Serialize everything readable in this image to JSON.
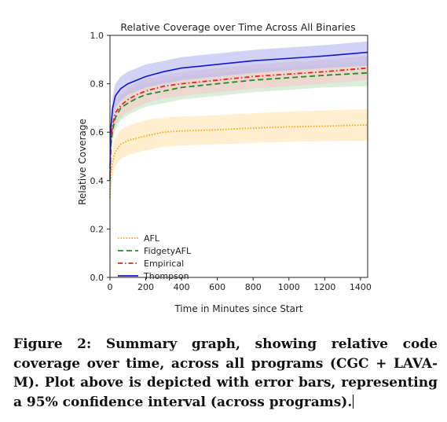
{
  "chart_data": {
    "type": "line",
    "title": "Relative Coverage over Time Across All Binaries",
    "xlabel": "Time in Minutes since Start",
    "ylabel": "Relative Coverage",
    "xlim": [
      0,
      1440
    ],
    "ylim": [
      0,
      1.0
    ],
    "xticks": [
      0,
      200,
      400,
      600,
      800,
      1000,
      1200,
      1400
    ],
    "yticks": [
      0.0,
      0.2,
      0.4,
      0.6,
      0.8,
      1.0
    ],
    "grid": false,
    "legend_position": "lower-left",
    "x": [
      0,
      5,
      15,
      30,
      60,
      100,
      150,
      200,
      300,
      400,
      600,
      800,
      1000,
      1200,
      1440
    ],
    "series": [
      {
        "name": "AFL",
        "color": "#FFA500",
        "style": "dotted",
        "band_color": "#FFE4B0",
        "values": [
          0.33,
          0.43,
          0.48,
          0.52,
          0.55,
          0.565,
          0.575,
          0.585,
          0.6,
          0.605,
          0.61,
          0.617,
          0.622,
          0.625,
          0.63
        ],
        "lower": [
          0.28,
          0.37,
          0.42,
          0.46,
          0.49,
          0.505,
          0.515,
          0.525,
          0.54,
          0.545,
          0.55,
          0.555,
          0.56,
          0.563,
          0.565
        ],
        "upper": [
          0.38,
          0.49,
          0.55,
          0.58,
          0.61,
          0.625,
          0.64,
          0.65,
          0.66,
          0.665,
          0.67,
          0.678,
          0.685,
          0.69,
          0.695
        ]
      },
      {
        "name": "FidgetyAFL",
        "color": "#228B22",
        "style": "dashed",
        "band_color": "#BFE5BF",
        "values": [
          0.4,
          0.55,
          0.61,
          0.66,
          0.7,
          0.72,
          0.74,
          0.755,
          0.77,
          0.785,
          0.8,
          0.815,
          0.825,
          0.835,
          0.845
        ],
        "lower": [
          0.36,
          0.5,
          0.56,
          0.61,
          0.65,
          0.67,
          0.69,
          0.705,
          0.72,
          0.735,
          0.75,
          0.765,
          0.775,
          0.785,
          0.79
        ],
        "upper": [
          0.44,
          0.6,
          0.66,
          0.71,
          0.75,
          0.77,
          0.79,
          0.8,
          0.815,
          0.83,
          0.845,
          0.86,
          0.87,
          0.88,
          0.89
        ]
      },
      {
        "name": "Empirical",
        "color": "#E8231E",
        "style": "dashdot",
        "band_color": "#F6C6C4",
        "values": [
          0.42,
          0.57,
          0.63,
          0.68,
          0.71,
          0.735,
          0.755,
          0.77,
          0.79,
          0.8,
          0.815,
          0.83,
          0.84,
          0.85,
          0.865
        ],
        "lower": [
          0.38,
          0.52,
          0.58,
          0.63,
          0.66,
          0.685,
          0.705,
          0.72,
          0.74,
          0.75,
          0.765,
          0.78,
          0.79,
          0.8,
          0.815
        ],
        "upper": [
          0.46,
          0.62,
          0.68,
          0.73,
          0.76,
          0.785,
          0.805,
          0.82,
          0.835,
          0.85,
          0.865,
          0.88,
          0.89,
          0.9,
          0.915
        ]
      },
      {
        "name": "Thompson",
        "color": "#1515D0",
        "style": "solid",
        "band_color": "#B4B4F2",
        "values": [
          0.45,
          0.62,
          0.7,
          0.75,
          0.78,
          0.8,
          0.815,
          0.83,
          0.85,
          0.865,
          0.88,
          0.895,
          0.905,
          0.915,
          0.93
        ],
        "lower": [
          0.4,
          0.57,
          0.65,
          0.7,
          0.73,
          0.755,
          0.77,
          0.785,
          0.8,
          0.815,
          0.83,
          0.845,
          0.855,
          0.865,
          0.875
        ],
        "upper": [
          0.5,
          0.67,
          0.75,
          0.8,
          0.83,
          0.85,
          0.865,
          0.88,
          0.895,
          0.91,
          0.925,
          0.94,
          0.95,
          0.96,
          0.975
        ]
      }
    ]
  },
  "caption": {
    "text": "Figure 2: Summary graph, showing relative code coverage over time, across all programs (CGC + LAVA-M). Plot above is depicted with error bars, representing a 95% confidence interval (across programs)."
  }
}
